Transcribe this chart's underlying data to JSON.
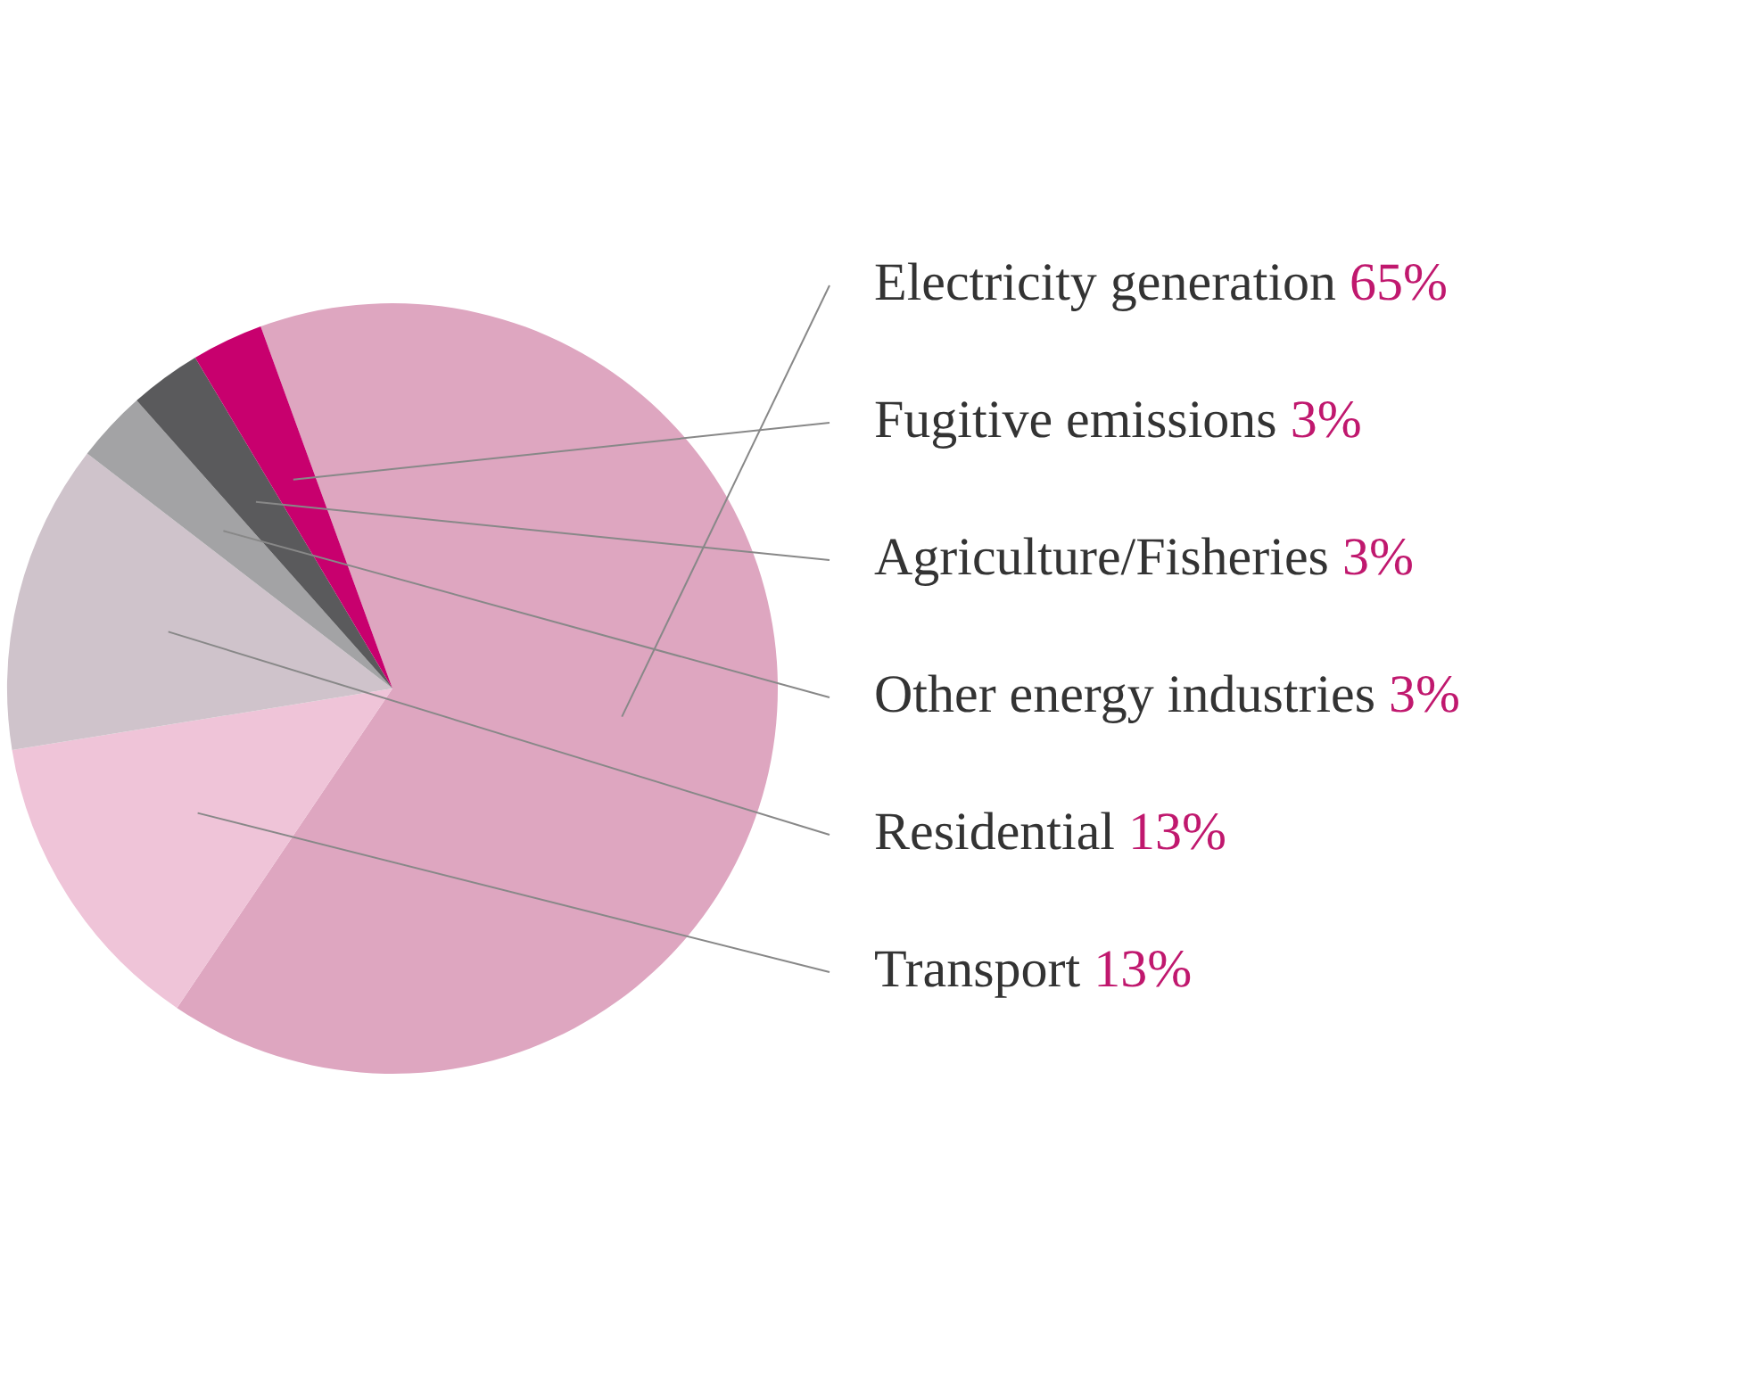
{
  "chart_data": {
    "type": "pie",
    "categories": [
      "Electricity generation",
      "Transport",
      "Residential",
      "Other energy industries",
      "Agriculture/Fisheries",
      "Fugitive emissions"
    ],
    "values": [
      65,
      13,
      13,
      3,
      3,
      3
    ],
    "value_labels": [
      "65%",
      "13%",
      "13%",
      "3%",
      "3%",
      "3%"
    ],
    "colors": [
      "#dea6c0",
      "#efc4d8",
      "#cfc3cb",
      "#a3a3a5",
      "#5a5a5c",
      "#c8006e"
    ],
    "legend": false
  }
}
